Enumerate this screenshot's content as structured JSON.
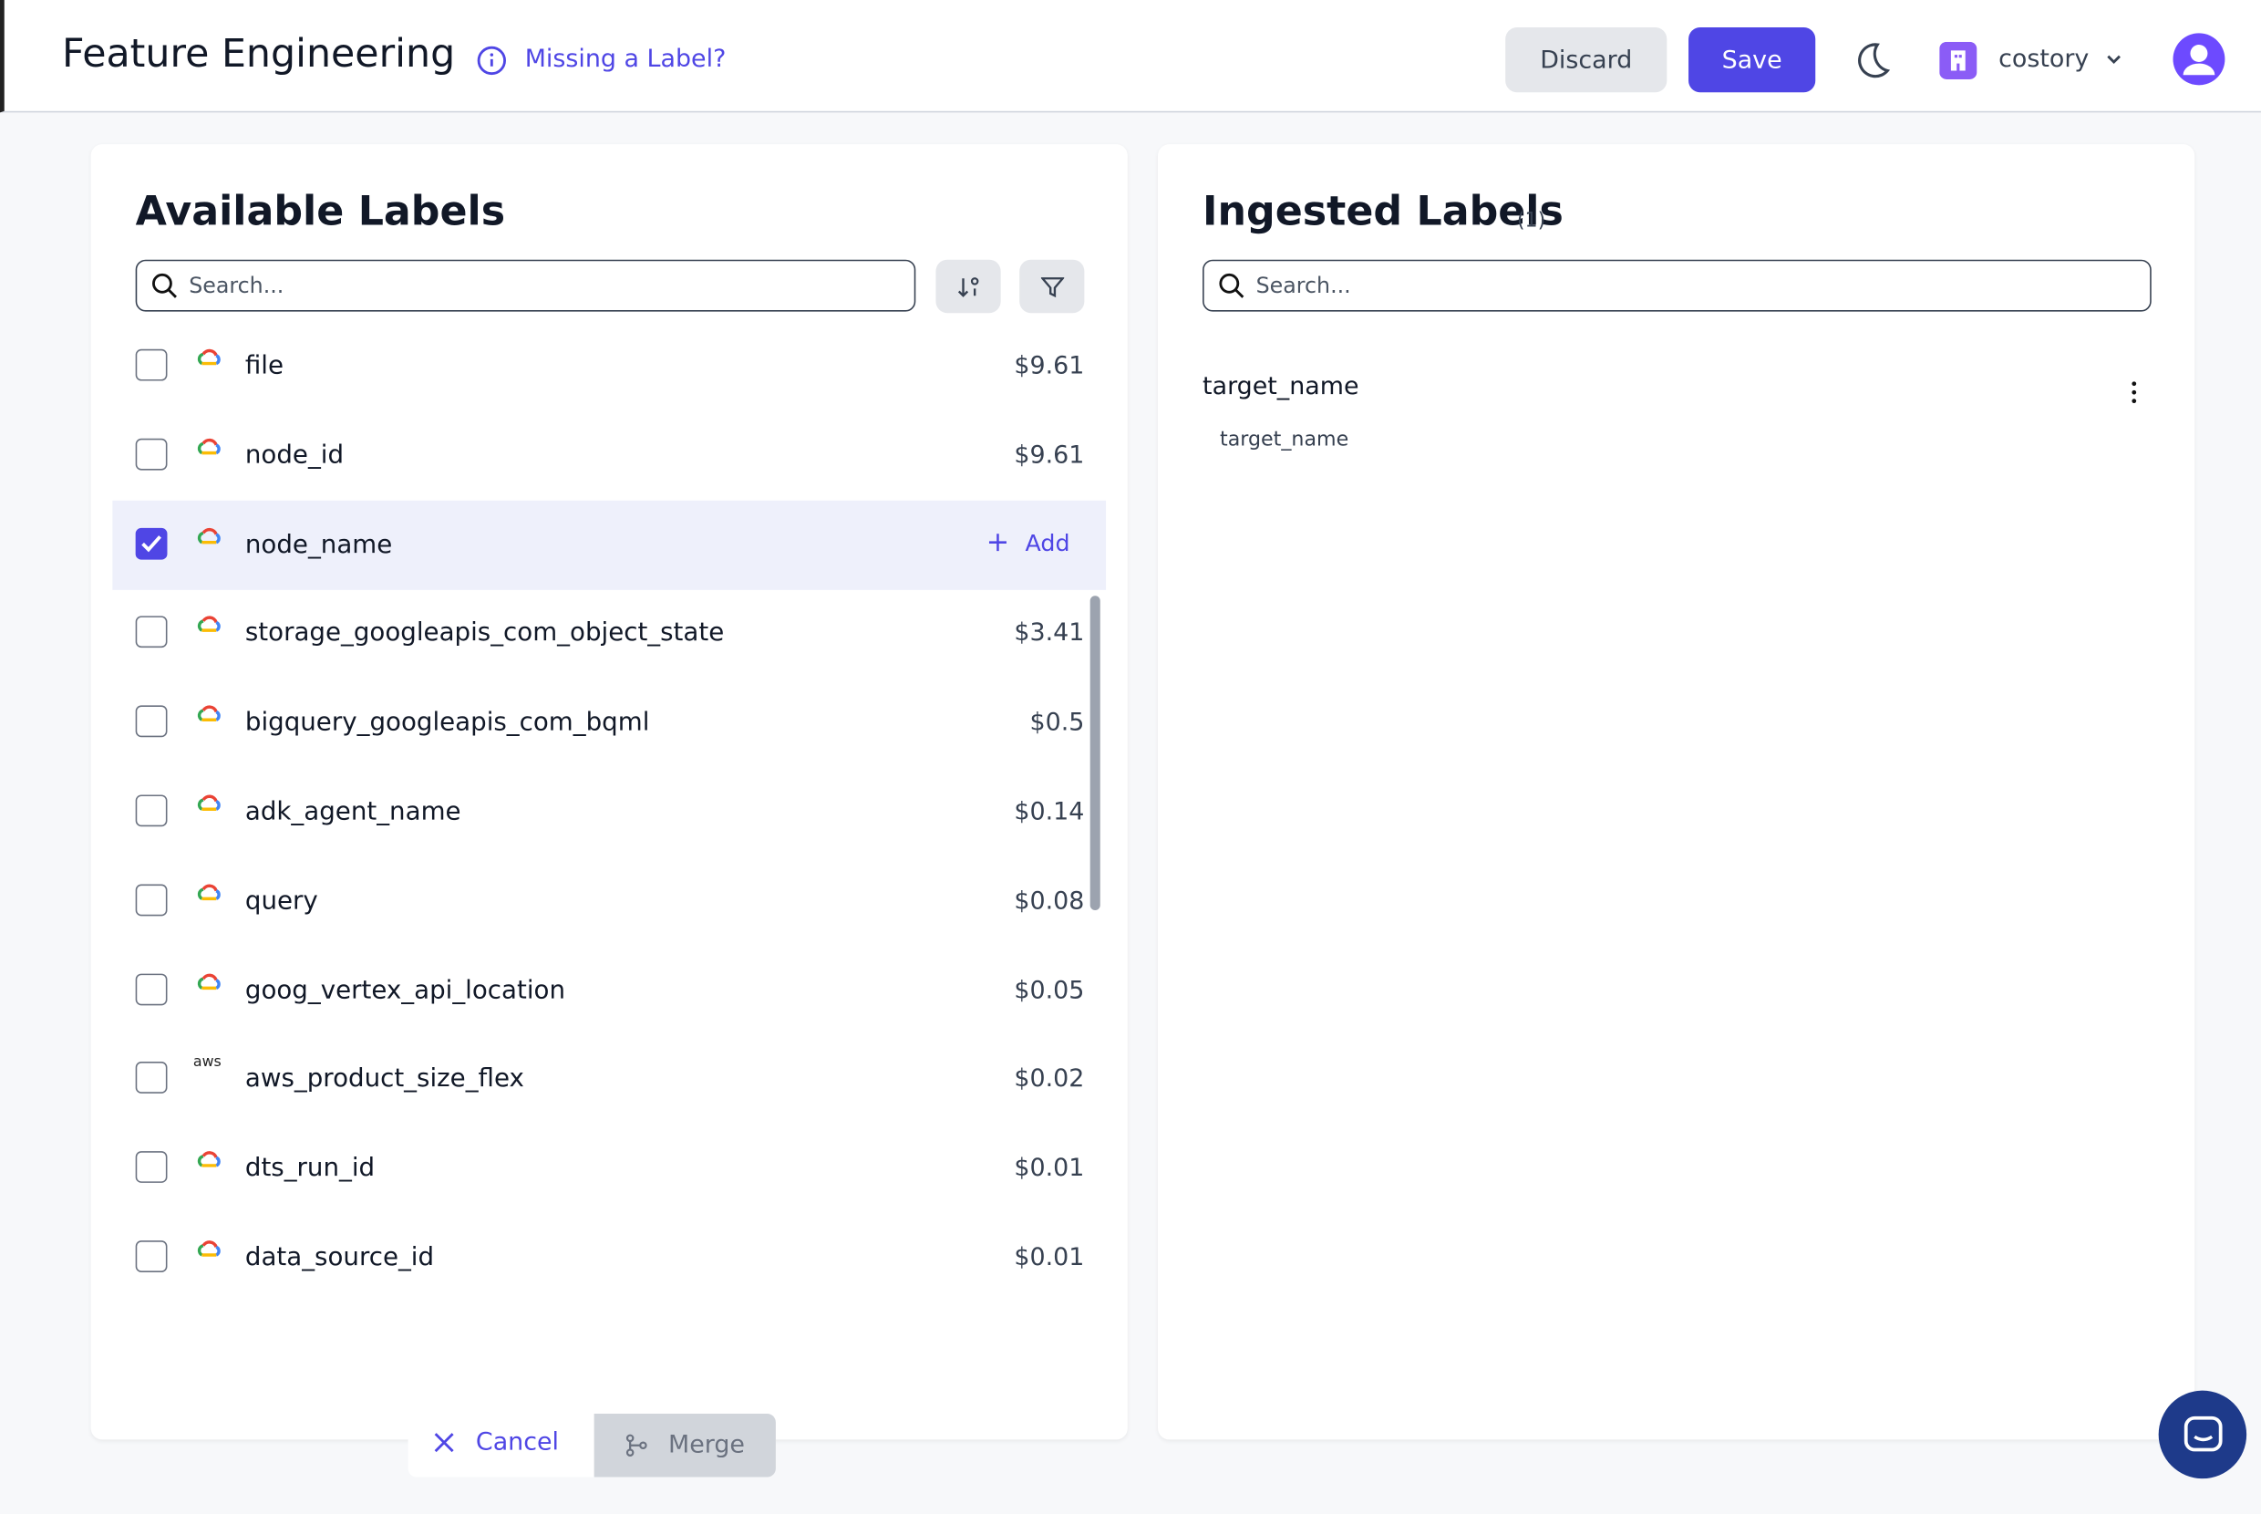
{
  "header": {
    "title": "Feature Engineering",
    "help_link": "Missing a Label?",
    "discard": "Discard",
    "save": "Save",
    "organization": "costory"
  },
  "available": {
    "title": "Available Labels",
    "search_placeholder": "Search...",
    "add": "Add",
    "rows": [
      {
        "name": "file",
        "provider": "gcp",
        "cost": "$9.61",
        "checked": false
      },
      {
        "name": "node_id",
        "provider": "gcp",
        "cost": "$9.61",
        "checked": false
      },
      {
        "name": "node_name",
        "provider": "gcp",
        "cost": null,
        "checked": true
      },
      {
        "name": "storage_googleapis_com_object_state",
        "provider": "gcp",
        "cost": "$3.41",
        "checked": false
      },
      {
        "name": "bigquery_googleapis_com_bqml",
        "provider": "gcp",
        "cost": "$0.5",
        "checked": false
      },
      {
        "name": "adk_agent_name",
        "provider": "gcp",
        "cost": "$0.14",
        "checked": false
      },
      {
        "name": "query",
        "provider": "gcp",
        "cost": "$0.08",
        "checked": false
      },
      {
        "name": "goog_vertex_api_location",
        "provider": "gcp",
        "cost": "$0.05",
        "checked": false
      },
      {
        "name": "aws_product_size_flex",
        "provider": "aws",
        "cost": "$0.02",
        "checked": false
      },
      {
        "name": "dts_run_id",
        "provider": "gcp",
        "cost": "$0.01",
        "checked": false
      },
      {
        "name": "data_source_id",
        "provider": "gcp",
        "cost": "$0.01",
        "checked": false
      }
    ]
  },
  "ingested": {
    "title": "Ingested Labels",
    "count": "(1)",
    "search_placeholder": "Search...",
    "items": [
      {
        "name": "target_name",
        "sources": [
          "target_name"
        ]
      }
    ]
  },
  "actions": {
    "cancel": "Cancel",
    "merge": "Merge"
  }
}
